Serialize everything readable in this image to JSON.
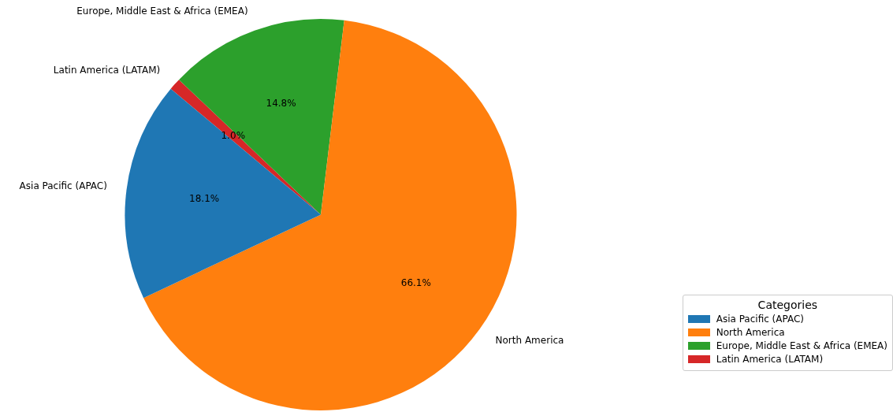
{
  "chart_data": {
    "type": "pie",
    "legend_title": "Categories",
    "legend": "bottom right",
    "categories": [
      "Asia Pacific (APAC)",
      "North America",
      "Europe, Middle East & Africa (EMEA)",
      "Latin America (LATAM)"
    ],
    "values": [
      18.1,
      66.1,
      14.8,
      1.0
    ],
    "value_labels": [
      "18.1%",
      "66.1%",
      "14.8%",
      "1.0%"
    ],
    "colors": [
      "#1f77b4",
      "#ff7f0e",
      "#2ca02c",
      "#d62728"
    ]
  }
}
